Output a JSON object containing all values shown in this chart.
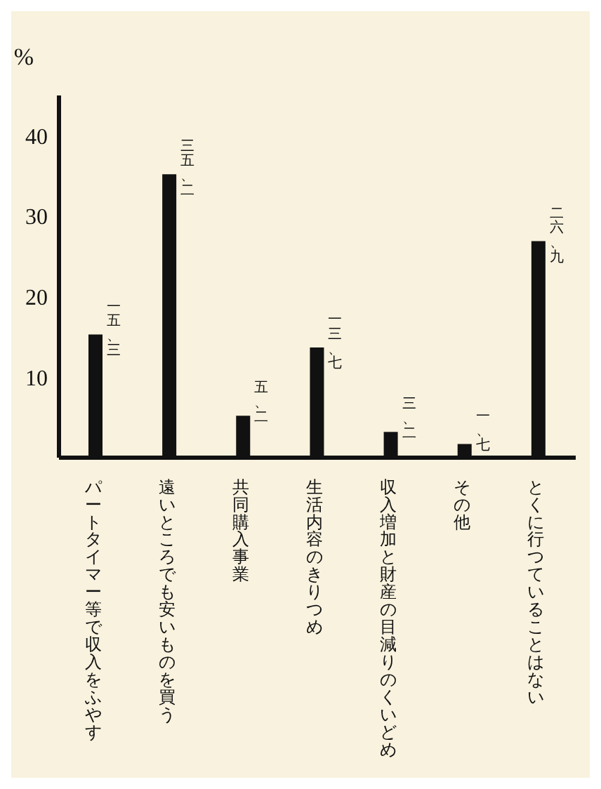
{
  "chart_data": {
    "type": "bar",
    "ylabel": "%",
    "categories": [
      "パートタイマー等で収入をふやす",
      "遠いところでも安いものを買う",
      "共同購入事業",
      "生活内容のきりつめ",
      "収入増加と財産の目減りのくいどめ",
      "その他",
      "とくに行つていることはない"
    ],
    "values": [
      15.3,
      35.2,
      5.2,
      13.7,
      3.2,
      1.7,
      26.9
    ],
    "value_labels": [
      "一五、三",
      "三五、二",
      "五、二",
      "一三、七",
      "三、二",
      "一、七",
      "二六、九"
    ],
    "color": "#111111",
    "ylim": [
      0,
      45
    ],
    "yticks": [
      10,
      20,
      30,
      40
    ],
    "grid": false,
    "legend": false
  }
}
